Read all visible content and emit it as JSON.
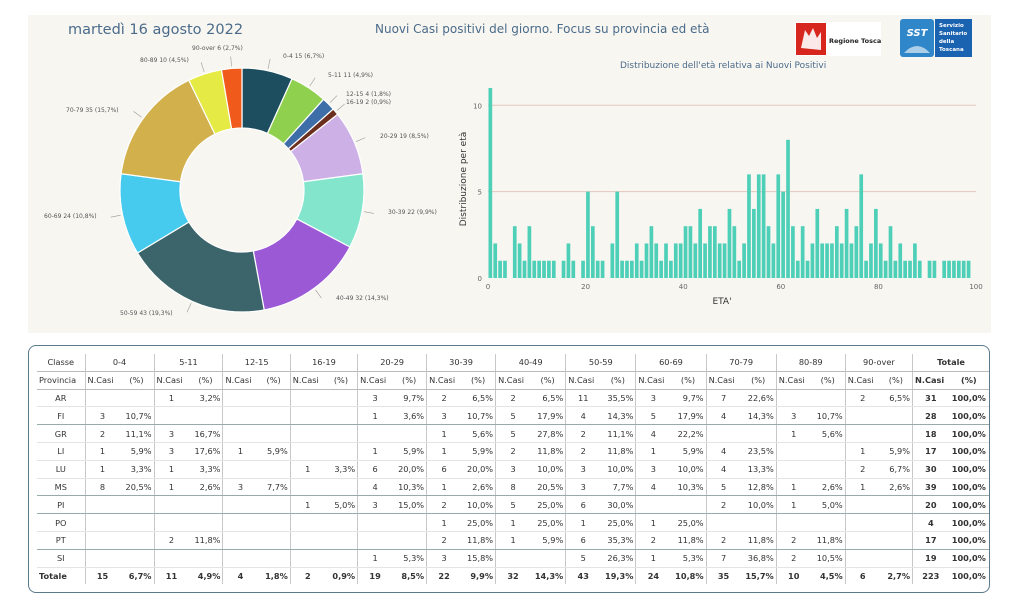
{
  "header": {
    "date": "martedì 16 agosto 2022",
    "title": "Nuovi Casi positivi del giorno. Focus su provincia ed età",
    "logo_rt": "Regione Toscana",
    "logo_sst_lines": [
      "Servizio",
      "Sanitario",
      "della",
      "Toscana"
    ],
    "logo_sst_mark": "SST"
  },
  "chart_data": [
    {
      "type": "pie",
      "donut": true,
      "title": "",
      "slices": [
        {
          "label": "0-4 15 (6,7%)",
          "value": 15,
          "color": "#1d4e5f"
        },
        {
          "label": "5-11 11 (4,9%)",
          "value": 11,
          "color": "#8fd14f"
        },
        {
          "label": "12-15 4 (1,8%)",
          "value": 4,
          "color": "#3e6ea8"
        },
        {
          "label": "16-19 2 (0,9%)",
          "value": 2,
          "color": "#6b2f1f"
        },
        {
          "label": "20-29 19 (8,5%)",
          "value": 19,
          "color": "#cdb1e6"
        },
        {
          "label": "30-39 22 (9,9%)",
          "value": 22,
          "color": "#82e5cc"
        },
        {
          "label": "40-49 32 (14,3%)",
          "value": 32,
          "color": "#9b59d6"
        },
        {
          "label": "50-59 43 (19,3%)",
          "value": 43,
          "color": "#3b646b"
        },
        {
          "label": "60-69 24 (10,8%)",
          "value": 24,
          "color": "#46cbef"
        },
        {
          "label": "70-79 35 (15,7%)",
          "value": 35,
          "color": "#d2b04c"
        },
        {
          "label": "80-89 10 (4,5%)",
          "value": 10,
          "color": "#e5ea44"
        },
        {
          "label": "90-over 6 (2,7%)",
          "value": 6,
          "color": "#f05a1a"
        }
      ]
    },
    {
      "type": "bar",
      "title": "Distribuzione dell'età relativa ai Nuovi Positivi",
      "xlabel": "ETA'",
      "ylabel": "Distribuzione per età",
      "xlim": [
        0,
        100
      ],
      "ylim": [
        0,
        11
      ],
      "xticks": [
        0,
        20,
        40,
        60,
        80,
        100
      ],
      "yticks": [
        0,
        5,
        10
      ],
      "color": "#4dcfb8",
      "ages": [
        0,
        1,
        2,
        3,
        4,
        5,
        6,
        7,
        8,
        9,
        10,
        11,
        12,
        13,
        14,
        15,
        16,
        17,
        18,
        19,
        20,
        21,
        22,
        23,
        24,
        25,
        26,
        27,
        28,
        29,
        30,
        31,
        32,
        33,
        34,
        35,
        36,
        37,
        38,
        39,
        40,
        41,
        42,
        43,
        44,
        45,
        46,
        47,
        48,
        49,
        50,
        51,
        52,
        53,
        54,
        55,
        56,
        57,
        58,
        59,
        60,
        61,
        62,
        63,
        64,
        65,
        66,
        67,
        68,
        69,
        70,
        71,
        72,
        73,
        74,
        75,
        76,
        77,
        78,
        79,
        80,
        81,
        82,
        83,
        84,
        85,
        86,
        87,
        88,
        89,
        90,
        91,
        92,
        93,
        94,
        95,
        96,
        97,
        98
      ],
      "values": [
        11,
        2,
        1,
        1,
        0,
        3,
        2,
        1,
        3,
        1,
        1,
        1,
        1,
        1,
        0,
        1,
        2,
        1,
        0,
        1,
        5,
        3,
        1,
        1,
        0,
        2,
        5,
        1,
        1,
        1,
        2,
        1,
        2,
        3,
        2,
        1,
        2,
        1,
        2,
        2,
        3,
        3,
        2,
        4,
        2,
        3,
        3,
        2,
        2,
        4,
        3,
        1,
        2,
        6,
        4,
        6,
        6,
        3,
        2,
        6,
        5,
        8,
        3,
        1,
        3,
        1,
        2,
        4,
        2,
        2,
        2,
        3,
        2,
        4,
        2,
        3,
        6,
        1,
        2,
        4,
        2,
        1,
        3,
        1,
        2,
        1,
        1,
        2,
        1,
        0,
        1,
        1,
        0,
        1,
        1,
        1,
        1,
        1,
        1
      ]
    }
  ],
  "table": {
    "classe_label": "Classe",
    "provincia_label": "Provincia",
    "ncasi_label": "N.Casi",
    "pct_label": "(%)",
    "totale_label": "Totale",
    "groups": [
      "0-4",
      "5-11",
      "12-15",
      "16-19",
      "20-29",
      "30-39",
      "40-49",
      "50-59",
      "60-69",
      "70-79",
      "80-89",
      "90-over"
    ],
    "rows": [
      {
        "prov": "AR",
        "cells": [
          [
            "",
            ""
          ],
          [
            "1",
            "3,2%"
          ],
          [
            "",
            ""
          ],
          [
            "",
            ""
          ],
          [
            "3",
            "9,7%"
          ],
          [
            "2",
            "6,5%"
          ],
          [
            "2",
            "6,5%"
          ],
          [
            "11",
            "35,5%"
          ],
          [
            "3",
            "9,7%"
          ],
          [
            "7",
            "22,6%"
          ],
          [
            "",
            ""
          ],
          [
            "2",
            "6,5%"
          ]
        ],
        "tot": "31",
        "pct": "100,0%"
      },
      {
        "prov": "FI",
        "cells": [
          [
            "3",
            "10,7%"
          ],
          [
            "",
            ""
          ],
          [
            "",
            ""
          ],
          [
            "",
            ""
          ],
          [
            "1",
            "3,6%"
          ],
          [
            "3",
            "10,7%"
          ],
          [
            "5",
            "17,9%"
          ],
          [
            "4",
            "14,3%"
          ],
          [
            "5",
            "17,9%"
          ],
          [
            "4",
            "14,3%"
          ],
          [
            "3",
            "10,7%"
          ],
          [
            "",
            ""
          ]
        ],
        "tot": "28",
        "pct": "100,0%"
      },
      {
        "prov": "GR",
        "cells": [
          [
            "2",
            "11,1%"
          ],
          [
            "3",
            "16,7%"
          ],
          [
            "",
            ""
          ],
          [
            "",
            ""
          ],
          [
            "",
            ""
          ],
          [
            "1",
            "5,6%"
          ],
          [
            "5",
            "27,8%"
          ],
          [
            "2",
            "11,1%"
          ],
          [
            "4",
            "22,2%"
          ],
          [
            "",
            ""
          ],
          [
            "1",
            "5,6%"
          ],
          [
            "",
            ""
          ]
        ],
        "tot": "18",
        "pct": "100,0%"
      },
      {
        "prov": "LI",
        "cells": [
          [
            "1",
            "5,9%"
          ],
          [
            "3",
            "17,6%"
          ],
          [
            "1",
            "5,9%"
          ],
          [
            "",
            ""
          ],
          [
            "1",
            "5,9%"
          ],
          [
            "1",
            "5,9%"
          ],
          [
            "2",
            "11,8%"
          ],
          [
            "2",
            "11,8%"
          ],
          [
            "1",
            "5,9%"
          ],
          [
            "4",
            "23,5%"
          ],
          [
            "",
            ""
          ],
          [
            "1",
            "5,9%"
          ]
        ],
        "tot": "17",
        "pct": "100,0%"
      },
      {
        "prov": "LU",
        "cells": [
          [
            "1",
            "3,3%"
          ],
          [
            "1",
            "3,3%"
          ],
          [
            "",
            ""
          ],
          [
            "1",
            "3,3%"
          ],
          [
            "6",
            "20,0%"
          ],
          [
            "6",
            "20,0%"
          ],
          [
            "3",
            "10,0%"
          ],
          [
            "3",
            "10,0%"
          ],
          [
            "3",
            "10,0%"
          ],
          [
            "4",
            "13,3%"
          ],
          [
            "",
            ""
          ],
          [
            "2",
            "6,7%"
          ]
        ],
        "tot": "30",
        "pct": "100,0%"
      },
      {
        "prov": "MS",
        "cells": [
          [
            "8",
            "20,5%"
          ],
          [
            "1",
            "2,6%"
          ],
          [
            "3",
            "7,7%"
          ],
          [
            "",
            ""
          ],
          [
            "4",
            "10,3%"
          ],
          [
            "1",
            "2,6%"
          ],
          [
            "8",
            "20,5%"
          ],
          [
            "3",
            "7,7%"
          ],
          [
            "4",
            "10,3%"
          ],
          [
            "5",
            "12,8%"
          ],
          [
            "1",
            "2,6%"
          ],
          [
            "1",
            "2,6%"
          ]
        ],
        "tot": "39",
        "pct": "100,0%"
      },
      {
        "prov": "PI",
        "cells": [
          [
            "",
            ""
          ],
          [
            "",
            ""
          ],
          [
            "",
            ""
          ],
          [
            "1",
            "5,0%"
          ],
          [
            "3",
            "15,0%"
          ],
          [
            "2",
            "10,0%"
          ],
          [
            "5",
            "25,0%"
          ],
          [
            "6",
            "30,0%"
          ],
          [
            "",
            ""
          ],
          [
            "2",
            "10,0%"
          ],
          [
            "1",
            "5,0%"
          ],
          [
            "",
            ""
          ]
        ],
        "tot": "20",
        "pct": "100,0%"
      },
      {
        "prov": "PO",
        "cells": [
          [
            "",
            ""
          ],
          [
            "",
            ""
          ],
          [
            "",
            ""
          ],
          [
            "",
            ""
          ],
          [
            "",
            ""
          ],
          [
            "1",
            "25,0%"
          ],
          [
            "1",
            "25,0%"
          ],
          [
            "1",
            "25,0%"
          ],
          [
            "1",
            "25,0%"
          ],
          [
            "",
            ""
          ],
          [
            "",
            ""
          ],
          [
            "",
            ""
          ]
        ],
        "tot": "4",
        "pct": "100,0%"
      },
      {
        "prov": "PT",
        "cells": [
          [
            "",
            ""
          ],
          [
            "2",
            "11,8%"
          ],
          [
            "",
            ""
          ],
          [
            "",
            ""
          ],
          [
            "",
            ""
          ],
          [
            "2",
            "11,8%"
          ],
          [
            "1",
            "5,9%"
          ],
          [
            "6",
            "35,3%"
          ],
          [
            "2",
            "11,8%"
          ],
          [
            "2",
            "11,8%"
          ],
          [
            "2",
            "11,8%"
          ],
          [
            "",
            ""
          ]
        ],
        "tot": "17",
        "pct": "100,0%"
      },
      {
        "prov": "SI",
        "cells": [
          [
            "",
            ""
          ],
          [
            "",
            ""
          ],
          [
            "",
            ""
          ],
          [
            "",
            ""
          ],
          [
            "1",
            "5,3%"
          ],
          [
            "3",
            "15,8%"
          ],
          [
            "",
            ""
          ],
          [
            "5",
            "26,3%"
          ],
          [
            "1",
            "5,3%"
          ],
          [
            "7",
            "36,8%"
          ],
          [
            "2",
            "10,5%"
          ],
          [
            "",
            ""
          ]
        ],
        "tot": "19",
        "pct": "100,0%"
      }
    ],
    "total_row": {
      "prov": "Totale",
      "cells": [
        [
          "15",
          "6,7%"
        ],
        [
          "11",
          "4,9%"
        ],
        [
          "4",
          "1,8%"
        ],
        [
          "2",
          "0,9%"
        ],
        [
          "19",
          "8,5%"
        ],
        [
          "22",
          "9,9%"
        ],
        [
          "32",
          "14,3%"
        ],
        [
          "43",
          "19,3%"
        ],
        [
          "24",
          "10,8%"
        ],
        [
          "35",
          "15,7%"
        ],
        [
          "10",
          "4,5%"
        ],
        [
          "6",
          "2,7%"
        ]
      ],
      "tot": "223",
      "pct": "100,0%"
    }
  }
}
